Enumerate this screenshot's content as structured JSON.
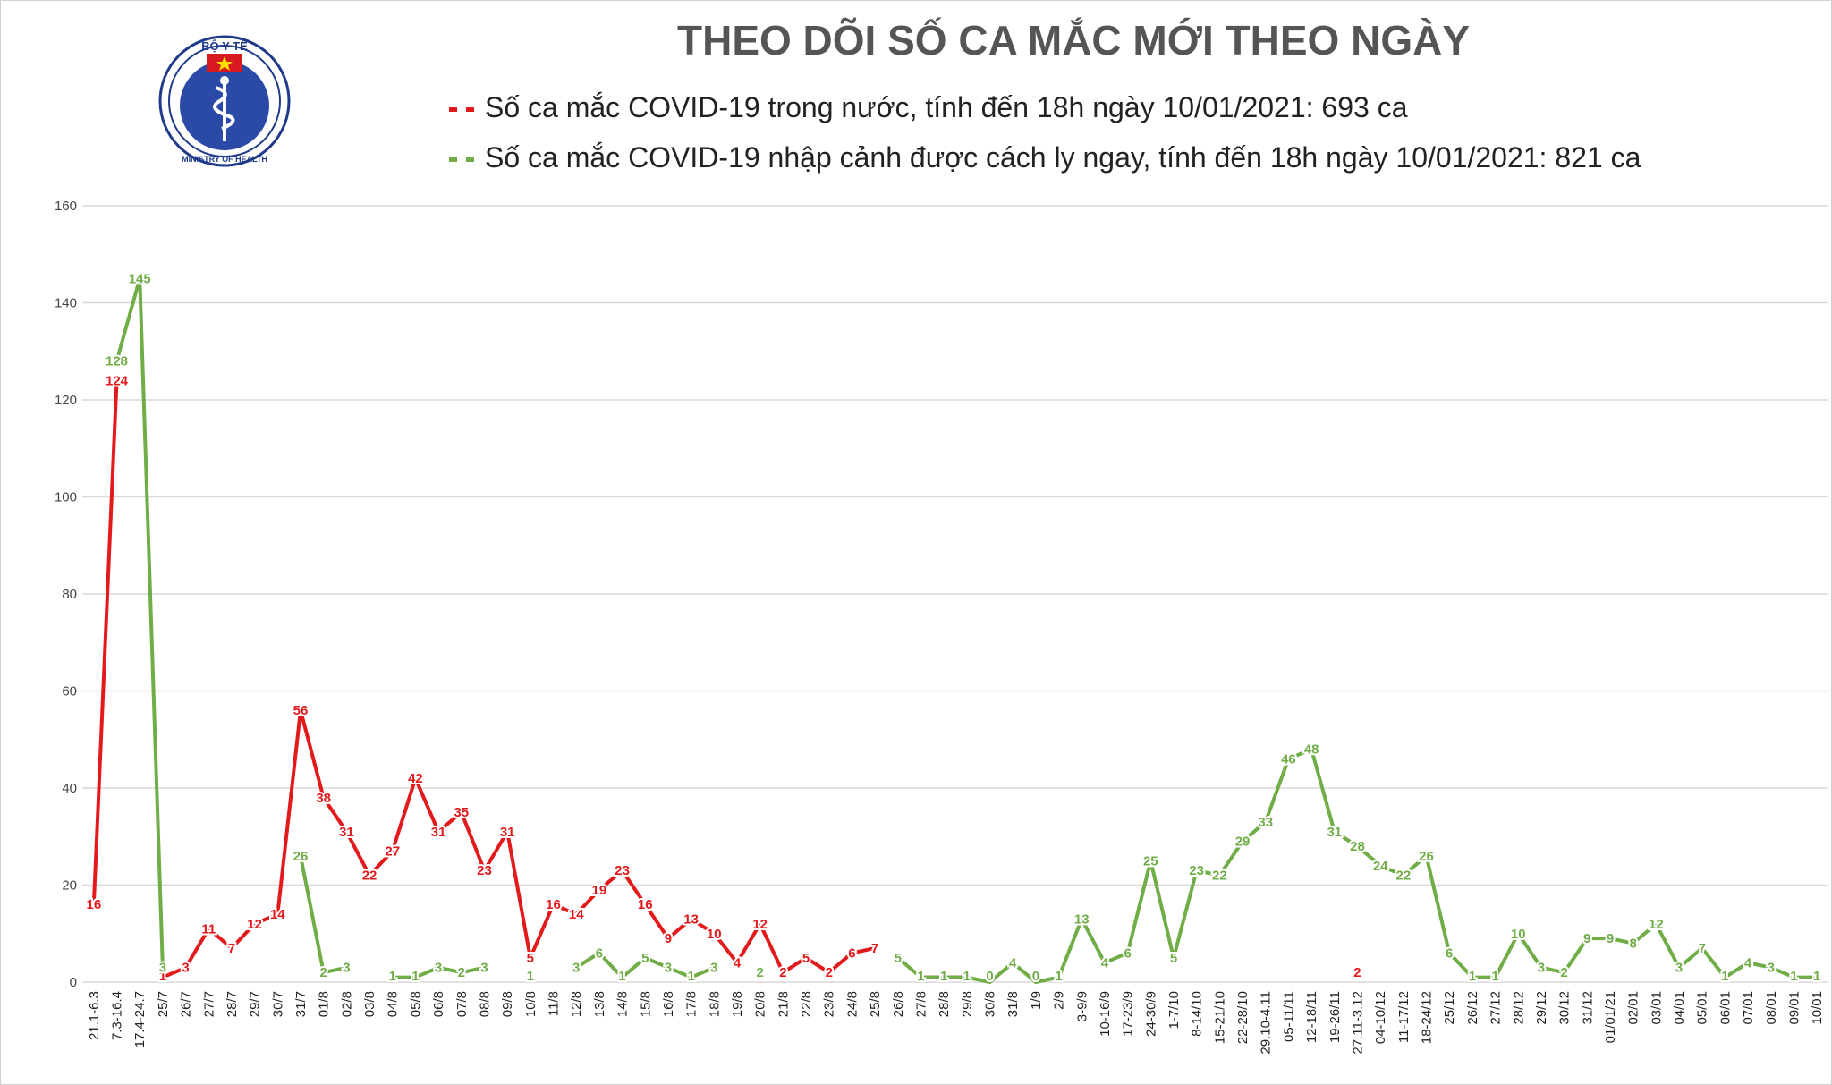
{
  "header": {
    "title": "THEO DÕI SỐ CA MẮC MỚI THEO NGÀY",
    "logo_text_top": "BỘ Y TẾ",
    "logo_text_bottom": "MINISTRY OF HEALTH"
  },
  "legend": {
    "domestic": "Số ca mắc COVID-19 trong nước, tính đến 18h ngày 10/01/2021: 693 ca",
    "imported": "Số ca mắc COVID-19 nhập cảnh được cách ly ngay, tính đến 18h ngày 10/01/2021: 821 ca"
  },
  "colors": {
    "domestic": "#e31a1c",
    "imported": "#70ad47",
    "grid": "#d9d9d9",
    "title": "#555555"
  },
  "chart_data": {
    "type": "line",
    "title": "THEO DÕI SỐ CA MẮC MỚI THEO NGÀY",
    "ylim": [
      0,
      160
    ],
    "yticks": [
      0,
      20,
      40,
      60,
      80,
      100,
      120,
      140,
      160
    ],
    "grid": true,
    "legend_position": "top",
    "categories": [
      "21.1-6.3",
      "7.3-16.4",
      "17.4-24.7",
      "25/7",
      "26/7",
      "27/7",
      "28/7",
      "29/7",
      "30/7",
      "31/7",
      "01/8",
      "02/8",
      "03/8",
      "04/8",
      "05/8",
      "06/8",
      "07/8",
      "08/8",
      "09/8",
      "10/8",
      "11/8",
      "12/8",
      "13/8",
      "14/8",
      "15/8",
      "16/8",
      "17/8",
      "18/8",
      "19/8",
      "20/8",
      "21/8",
      "22/8",
      "23/8",
      "24/8",
      "25/8",
      "26/8",
      "27/8",
      "28/8",
      "29/8",
      "30/8",
      "31/8",
      "1/9",
      "2/9",
      "3-9/9",
      "10-16/9",
      "17-23/9",
      "24-30/9",
      "1-7/10",
      "8-14/10",
      "15-21/10",
      "22-28/10",
      "29.10-4.11",
      "05-11/11",
      "12-18/11",
      "19-26/11",
      "27.11-3.12",
      "04-10/12",
      "11-17/12",
      "18-24/12",
      "25/12",
      "26/12",
      "27/12",
      "28/12",
      "29/12",
      "30/12",
      "31/12",
      "01/01/21",
      "02/01",
      "03/01",
      "04/01",
      "05/01",
      "06/01",
      "07/01",
      "08/01",
      "09/01",
      "10/01"
    ],
    "series": [
      {
        "name": "Số ca mắc COVID-19 trong nước, tính đến 18h ngày 10/01/2021: 693 ca",
        "color": "#e31a1c",
        "values": [
          16,
          124,
          null,
          1,
          3,
          11,
          7,
          12,
          14,
          56,
          38,
          31,
          22,
          27,
          42,
          31,
          35,
          23,
          31,
          5,
          16,
          14,
          19,
          23,
          16,
          9,
          13,
          10,
          4,
          12,
          2,
          5,
          2,
          6,
          7,
          null,
          1,
          1,
          1,
          null,
          null,
          null,
          1,
          null,
          null,
          null,
          null,
          null,
          null,
          null,
          null,
          null,
          null,
          null,
          null,
          2,
          null,
          null,
          null,
          null,
          null,
          null,
          null,
          null,
          null,
          null,
          null,
          null,
          null,
          null,
          null,
          null,
          null,
          null,
          null,
          null
        ]
      },
      {
        "name": "Số ca mắc COVID-19 nhập cảnh được cách ly ngay, tính đến 18h ngày 10/01/2021: 821 ca",
        "color": "#70ad47",
        "values": [
          null,
          128,
          145,
          3,
          null,
          null,
          null,
          null,
          null,
          26,
          2,
          3,
          null,
          1,
          1,
          3,
          2,
          3,
          null,
          1,
          null,
          3,
          6,
          1,
          5,
          3,
          1,
          3,
          null,
          2,
          null,
          null,
          null,
          null,
          null,
          5,
          1,
          1,
          1,
          0,
          4,
          0,
          1,
          13,
          4,
          6,
          25,
          5,
          23,
          22,
          29,
          33,
          46,
          48,
          31,
          28,
          24,
          22,
          26,
          6,
          1,
          1,
          10,
          3,
          2,
          9,
          9,
          8,
          12,
          3,
          7,
          1,
          4,
          3,
          1,
          1
        ]
      }
    ]
  }
}
